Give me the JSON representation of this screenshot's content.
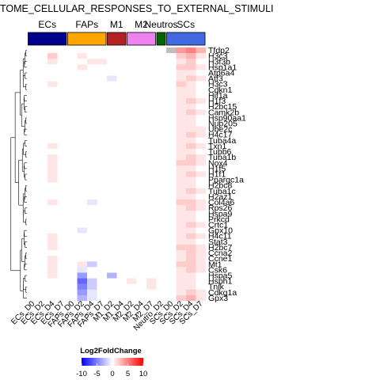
{
  "chart_data": {
    "type": "heatmap",
    "title": "TOME_CELLULAR_RESPONSES_TO_EXTERNAL_STIMULI",
    "column_groups": [
      {
        "name": "ECs",
        "color": "#00008B",
        "columns": [
          "ECs_D0",
          "ECs_D2",
          "ECs_D4",
          "ECs_D7"
        ]
      },
      {
        "name": "FAPs",
        "color": "#FFA500",
        "columns": [
          "FAPs_D0",
          "FAPs_D2",
          "FAPs_D4",
          "FAPs_D7"
        ]
      },
      {
        "name": "M1",
        "color": "#B22222",
        "columns": [
          "M1_D2",
          "M1_D4"
        ]
      },
      {
        "name": "M2",
        "color": "#EE82EE",
        "columns": [
          "M2_D2",
          "M2_D4",
          "M2_D7"
        ]
      },
      {
        "name": "Neutros",
        "color": "#006400",
        "columns": [
          "Neutro_D2"
        ]
      },
      {
        "name": "SCs",
        "color": "#4169E1",
        "columns": [
          "SCs_D0",
          "SCs_D2",
          "SCs_D4",
          "SCs_D7"
        ]
      }
    ],
    "columns": [
      "ECs_D0",
      "ECs_D2",
      "ECs_D4",
      "ECs_D7",
      "FAPs_D0",
      "FAPs_D2",
      "FAPs_D4",
      "FAPs_D7",
      "M1_D2",
      "M1_D4",
      "M2_D2",
      "M2_D4",
      "M2_D7",
      "Neutro_D2",
      "SCs_D0",
      "SCs_D2",
      "SCs_D4",
      "SCs_D7"
    ],
    "rows": [
      "Tfdp2",
      "H3c3",
      "H3f3b",
      "Hsp1a1",
      "Atp6a4",
      "Atf3",
      "H3c3",
      "Cdkn1",
      "Hif1a",
      "H1f3",
      "H2bc15",
      "Camk2b",
      "Hsp90aa1",
      "Nup205",
      "Ube2c",
      "H4c17",
      "Tuba4a",
      "Txn1",
      "Tubb6",
      "Tuba1b",
      "Nox4",
      "H1f5",
      "H1f1",
      "Ppargc1a",
      "H2bc8",
      "Tuba1c",
      "H2az1",
      "Col4a6",
      "Rps26",
      "Hspa9",
      "Prkcd",
      "Crtc1",
      "Gpx10",
      "H4c11",
      "Stat3",
      "H2bc7",
      "Ccna2",
      "Ccne1",
      "Mt1",
      "Csk6",
      "Hspa5",
      "Hsph1",
      "Tnik",
      "Cdkg1a",
      "Gpx3"
    ],
    "values": [
      [
        0,
        0,
        0,
        0,
        0,
        0,
        0,
        0,
        0,
        0,
        0,
        0,
        0,
        0,
        -4,
        4,
        5,
        3
      ],
      [
        0,
        0,
        2,
        0,
        0,
        1,
        0,
        0,
        0,
        0,
        0,
        0,
        0,
        0,
        0,
        2,
        3,
        1
      ],
      [
        0,
        0,
        1,
        0,
        0,
        0,
        1,
        1,
        0,
        0,
        0,
        0,
        0,
        0,
        0,
        1,
        2,
        0
      ],
      [
        0,
        0,
        0,
        0,
        0,
        1,
        0,
        0,
        0,
        0,
        0,
        0,
        0,
        0,
        0,
        2,
        2,
        1
      ],
      [
        0,
        0,
        0,
        0,
        0,
        0,
        0,
        0,
        0,
        0,
        0,
        0,
        0,
        0,
        0,
        1,
        1,
        0
      ],
      [
        0,
        0,
        0,
        0,
        0,
        0,
        0,
        0,
        -1,
        0,
        0,
        0,
        0,
        0,
        0,
        1,
        2,
        1
      ],
      [
        0,
        0,
        1,
        0,
        0,
        0,
        0,
        0,
        0,
        0,
        0,
        0,
        0,
        0,
        0,
        2,
        1,
        0
      ],
      [
        0,
        0,
        0,
        0,
        0,
        0,
        0,
        0,
        0,
        0,
        0,
        0,
        0,
        0,
        0,
        1,
        1,
        0
      ],
      [
        0,
        0,
        0,
        0,
        0,
        0,
        0,
        0,
        0,
        0,
        0,
        0,
        0,
        0,
        0,
        1,
        1,
        0
      ],
      [
        0,
        0,
        0,
        0,
        0,
        0,
        0,
        0,
        0,
        0,
        0,
        0,
        0,
        0,
        0,
        1,
        2,
        1
      ],
      [
        0,
        0,
        0,
        0,
        0,
        0,
        0,
        0,
        0,
        0,
        0,
        0,
        0,
        0,
        0,
        1,
        1,
        0
      ],
      [
        0,
        0,
        0,
        0,
        0,
        0,
        0,
        0,
        0,
        0,
        0,
        0,
        0,
        0,
        0,
        1,
        2,
        1
      ],
      [
        0,
        0,
        0,
        0,
        0,
        0,
        0,
        0,
        0,
        0,
        0,
        0,
        0,
        0,
        0,
        1,
        1,
        0
      ],
      [
        0,
        0,
        0,
        0,
        0,
        0,
        0,
        0,
        0,
        0,
        0,
        0,
        0,
        0,
        0,
        1,
        1,
        0
      ],
      [
        0,
        0,
        0,
        0,
        0,
        0,
        0,
        0,
        0,
        0,
        0,
        0,
        0,
        0,
        0,
        1,
        1,
        1
      ],
      [
        0,
        0,
        0,
        0,
        0,
        0,
        0,
        0,
        0,
        0,
        0,
        0,
        0,
        0,
        0,
        1,
        2,
        1
      ],
      [
        0,
        0,
        0,
        0,
        0,
        0,
        0,
        0,
        0,
        0,
        0,
        0,
        0,
        0,
        0,
        1,
        1,
        0
      ],
      [
        0,
        0,
        1,
        0,
        0,
        0,
        0,
        0,
        0,
        0,
        0,
        0,
        0,
        0,
        0,
        1,
        2,
        1
      ],
      [
        0,
        0,
        0,
        0,
        0,
        0,
        0,
        0,
        0,
        0,
        0,
        0,
        0,
        0,
        0,
        1,
        1,
        0
      ],
      [
        0,
        0,
        1,
        0,
        0,
        0,
        0,
        0,
        0,
        0,
        0,
        0,
        0,
        0,
        0,
        1,
        2,
        1
      ],
      [
        0,
        0,
        1,
        0,
        0,
        0,
        0,
        0,
        0,
        0,
        0,
        0,
        0,
        0,
        0,
        2,
        2,
        1
      ],
      [
        0,
        0,
        1,
        0,
        0,
        0,
        0,
        0,
        0,
        0,
        0,
        0,
        0,
        0,
        0,
        1,
        1,
        0
      ],
      [
        0,
        0,
        1,
        0,
        0,
        0,
        0,
        0,
        0,
        0,
        0,
        0,
        0,
        0,
        0,
        1,
        2,
        1
      ],
      [
        0,
        0,
        1,
        0,
        0,
        0,
        0,
        0,
        0,
        0,
        0,
        0,
        0,
        0,
        0,
        1,
        1,
        0
      ],
      [
        0,
        0,
        0,
        0,
        0,
        0,
        0,
        0,
        0,
        0,
        0,
        0,
        0,
        0,
        0,
        1,
        1,
        0
      ],
      [
        0,
        0,
        0,
        0,
        0,
        0,
        0,
        0,
        0,
        0,
        0,
        0,
        0,
        0,
        0,
        1,
        2,
        1
      ],
      [
        0,
        0,
        0,
        0,
        0,
        0,
        0,
        0,
        0,
        0,
        0,
        0,
        0,
        0,
        0,
        1,
        1,
        0
      ],
      [
        0,
        0,
        1,
        0,
        0,
        0,
        -1,
        0,
        0,
        0,
        0,
        0,
        0,
        0,
        0,
        2,
        2,
        1
      ],
      [
        0,
        0,
        0,
        0,
        0,
        0,
        0,
        0,
        0,
        0,
        0,
        0,
        0,
        0,
        0,
        1,
        2,
        1
      ],
      [
        0,
        0,
        0,
        0,
        0,
        0,
        0,
        0,
        0,
        0,
        0,
        0,
        0,
        0,
        0,
        1,
        1,
        0
      ],
      [
        0,
        0,
        0,
        0,
        0,
        0,
        0,
        0,
        0,
        0,
        0,
        0,
        0,
        0,
        0,
        1,
        1,
        0
      ],
      [
        0,
        0,
        0,
        0,
        0,
        0,
        0,
        0,
        0,
        0,
        0,
        0,
        0,
        0,
        0,
        1,
        2,
        1
      ],
      [
        0,
        0,
        0,
        0,
        0,
        -1,
        0,
        0,
        0,
        0,
        0,
        0,
        0,
        0,
        0,
        1,
        1,
        0
      ],
      [
        0,
        0,
        1,
        0,
        0,
        0,
        0,
        0,
        0,
        0,
        0,
        0,
        0,
        0,
        0,
        1,
        2,
        1
      ],
      [
        0,
        0,
        1,
        0,
        0,
        0,
        0,
        0,
        0,
        0,
        0,
        0,
        0,
        0,
        0,
        1,
        1,
        0
      ],
      [
        0,
        0,
        1,
        0,
        0,
        0,
        0,
        0,
        0,
        0,
        0,
        0,
        0,
        0,
        0,
        2,
        2,
        1
      ],
      [
        0,
        0,
        0,
        0,
        0,
        0,
        0,
        0,
        0,
        0,
        0,
        0,
        0,
        0,
        0,
        1,
        2,
        1
      ],
      [
        0,
        0,
        1,
        0,
        0,
        0,
        0,
        0,
        0,
        0,
        0,
        0,
        0,
        0,
        0,
        1,
        2,
        1
      ],
      [
        0,
        0,
        1,
        0,
        0,
        1,
        -2,
        0,
        0,
        0,
        0,
        0,
        0,
        0,
        0,
        2,
        2,
        1
      ],
      [
        0,
        0,
        1,
        0,
        0,
        -1,
        0,
        0,
        0,
        0,
        0,
        0,
        0,
        0,
        0,
        1,
        2,
        1
      ],
      [
        0,
        0,
        1,
        0,
        0,
        -4,
        0,
        0,
        -3,
        0,
        0,
        0,
        0,
        0,
        0,
        1,
        1,
        0
      ],
      [
        0,
        0,
        0,
        0,
        0,
        -6,
        -2,
        0,
        0,
        0,
        1,
        0,
        1,
        0,
        0,
        1,
        1,
        0
      ],
      [
        0,
        0,
        0,
        0,
        0,
        -5,
        -2,
        0,
        0,
        0,
        0,
        0,
        1,
        0,
        0,
        1,
        1,
        0
      ],
      [
        0,
        0,
        0,
        0,
        0,
        -4,
        -1,
        0,
        0,
        0,
        0,
        0,
        0,
        0,
        0,
        1,
        2,
        1
      ],
      [
        0,
        0,
        0,
        0,
        0,
        -3,
        -1,
        0,
        0,
        0,
        0,
        0,
        0,
        0,
        0,
        2,
        3,
        1
      ]
    ],
    "missing_cells": [
      [
        0,
        14
      ]
    ],
    "legend": {
      "title": "Log2FoldChange",
      "ticks": [
        -10,
        -5,
        0,
        5,
        10
      ],
      "range": [
        -10,
        10
      ]
    }
  },
  "colors": {
    "low": "#0000FF",
    "mid": "#FFFFFF",
    "high": "#FF0000",
    "missing": "#BEBEBE",
    "dendrogram": "#000000"
  }
}
